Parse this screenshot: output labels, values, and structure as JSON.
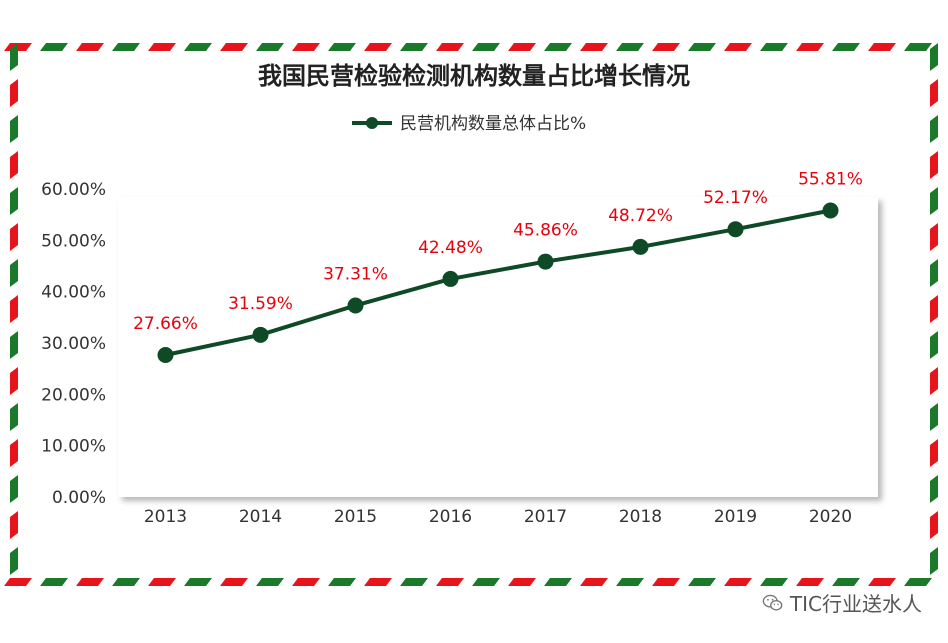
{
  "title": "我国民营检验检测机构数量占比增长情况",
  "watermark": "TIC行业送水人",
  "colors": {
    "line": "#0d4a25",
    "label": "#e8000b",
    "frame_red": "#e8141b",
    "frame_green": "#1a7a2a"
  },
  "chart_data": {
    "type": "line",
    "title": "我国民营检验检测机构数量占比增长情况",
    "categories": [
      "2013",
      "2014",
      "2015",
      "2016",
      "2017",
      "2018",
      "2019",
      "2020"
    ],
    "series": [
      {
        "name": "民营机构数量总体占比%",
        "values": [
          27.66,
          31.59,
          37.31,
          42.48,
          45.86,
          48.72,
          52.17,
          55.81
        ]
      }
    ],
    "data_labels": [
      "27.66%",
      "31.59%",
      "37.31%",
      "42.48%",
      "45.86%",
      "48.72%",
      "52.17%",
      "55.81%"
    ],
    "y_ticks": [
      "0.00%",
      "10.00%",
      "20.00%",
      "30.00%",
      "40.00%",
      "50.00%",
      "60.00%"
    ],
    "ylim": [
      0,
      60
    ],
    "legend_position": "top-center",
    "grid": false
  }
}
